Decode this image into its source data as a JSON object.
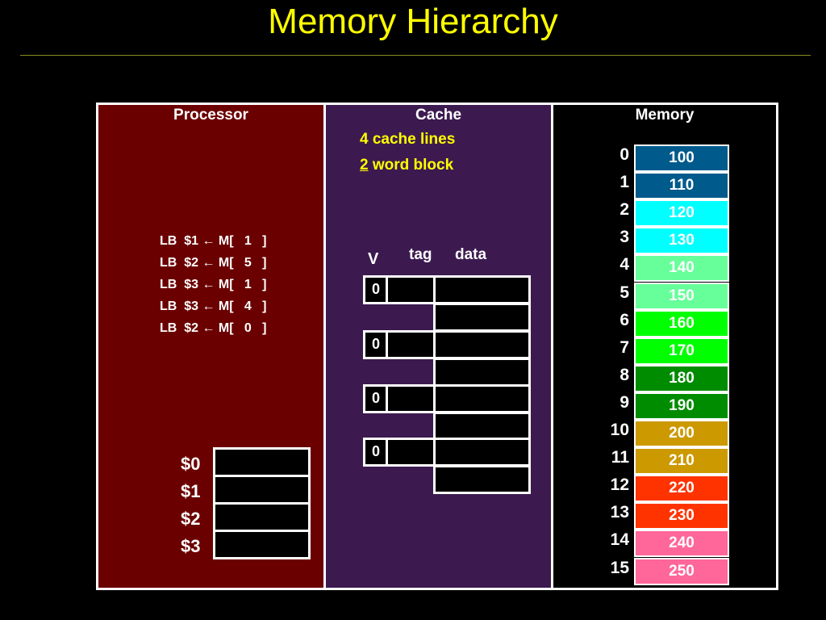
{
  "title": "Memory Hierarchy",
  "processor": {
    "label": "Processor",
    "instructions": [
      "LB  $1 ← M[   1   ]",
      "LB  $2 ← M[   5   ]",
      "LB  $3 ← M[   1   ]",
      "LB  $3 ← M[   4   ]",
      "LB  $2 ← M[   0   ]"
    ],
    "registers": [
      "$0",
      "$1",
      "$2",
      "$3"
    ]
  },
  "cache": {
    "label": "Cache",
    "lines_text": "4 cache lines",
    "block_num": "2",
    "block_text": " word block",
    "col_v": "V",
    "col_tag": "tag",
    "col_data": "data",
    "valid": [
      "0",
      "0",
      "0",
      "0"
    ]
  },
  "memory": {
    "label": "Memory",
    "cells": [
      {
        "addr": "0",
        "value": "100",
        "color": "#005a8c"
      },
      {
        "addr": "1",
        "value": "110",
        "color": "#005a8c"
      },
      {
        "addr": "2",
        "value": "120",
        "color": "#00ffff"
      },
      {
        "addr": "3",
        "value": "130",
        "color": "#00ffff"
      },
      {
        "addr": "4",
        "value": "140",
        "color": "#66ff99"
      },
      {
        "addr": "5",
        "value": "150",
        "color": "#66ff99"
      },
      {
        "addr": "6",
        "value": "160",
        "color": "#00ff00"
      },
      {
        "addr": "7",
        "value": "170",
        "color": "#00ff00"
      },
      {
        "addr": "8",
        "value": "180",
        "color": "#008c00"
      },
      {
        "addr": "9",
        "value": "190",
        "color": "#008c00"
      },
      {
        "addr": "10",
        "value": "200",
        "color": "#cc9900"
      },
      {
        "addr": "11",
        "value": "210",
        "color": "#cc9900"
      },
      {
        "addr": "12",
        "value": "220",
        "color": "#ff3300"
      },
      {
        "addr": "13",
        "value": "230",
        "color": "#ff3300"
      },
      {
        "addr": "14",
        "value": "240",
        "color": "#ff6699"
      },
      {
        "addr": "15",
        "value": "250",
        "color": "#ff6699"
      }
    ]
  },
  "colors": {
    "processor_bg": "#6b0000",
    "cache_bg": "#3c1a50",
    "title": "#ffff00"
  }
}
